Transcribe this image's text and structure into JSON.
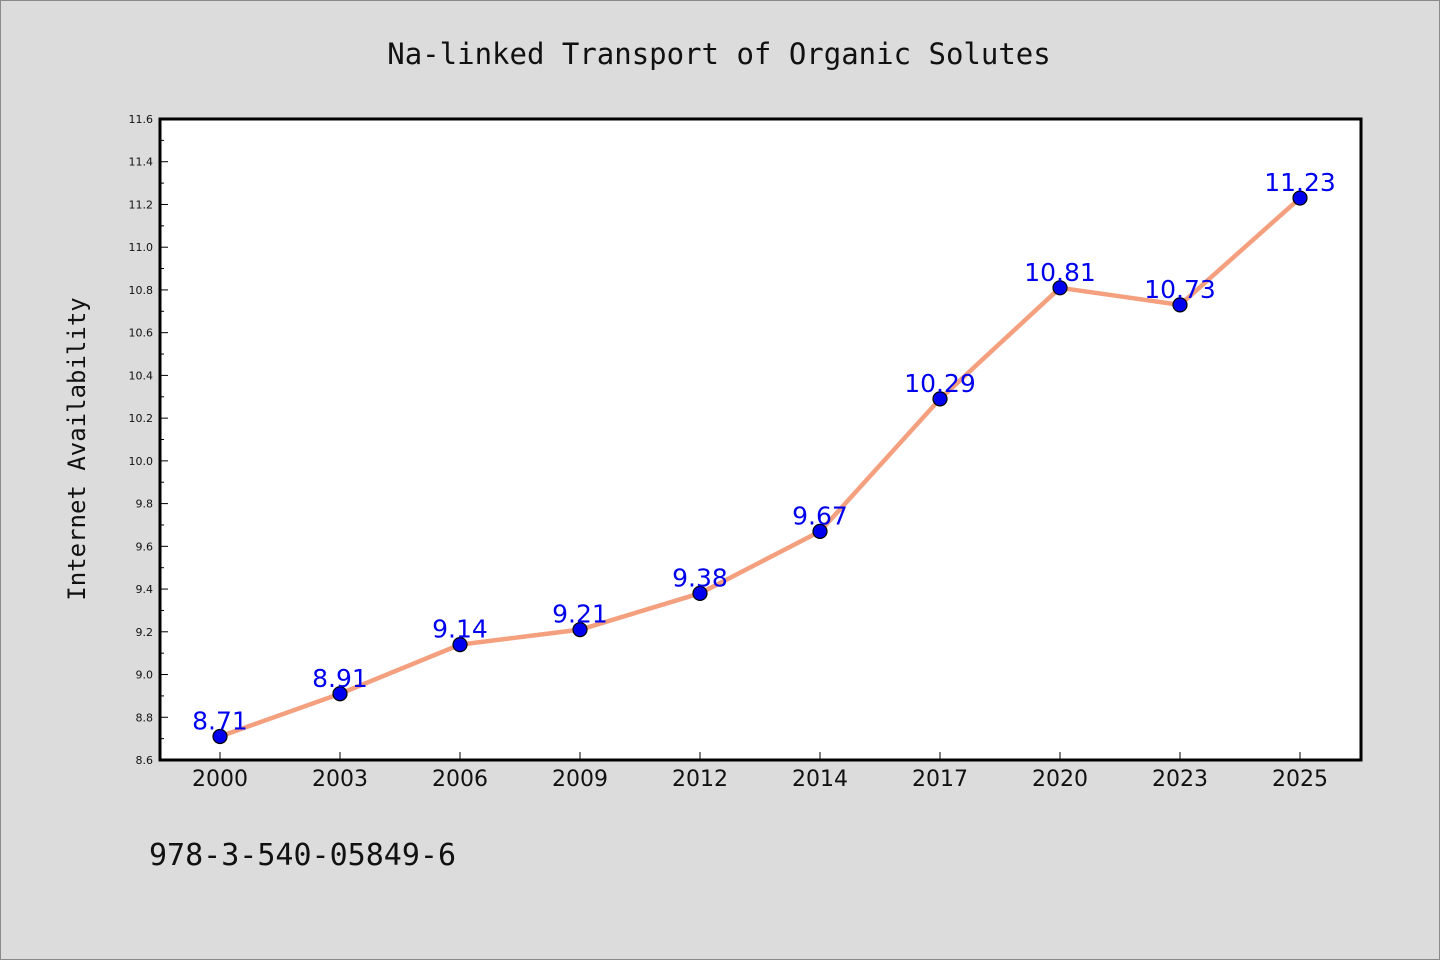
{
  "chart_data": {
    "type": "line",
    "title": "Na-linked Transport of Organic Solutes",
    "xlabel": "",
    "ylabel": "Internet Availability",
    "categories": [
      "2000",
      "2003",
      "2006",
      "2009",
      "2012",
      "2014",
      "2017",
      "2020",
      "2023",
      "2025"
    ],
    "series": [
      {
        "values": [
          8.71,
          8.91,
          9.14,
          9.21,
          9.38,
          9.67,
          10.29,
          10.81,
          10.73,
          11.23
        ]
      }
    ],
    "data_labels": [
      "8.71",
      "8.91",
      "9.14",
      "9.21",
      "9.38",
      "9.67",
      "10.29",
      "10.81",
      "10.73",
      "11.23"
    ],
    "ylim": [
      8.6,
      11.6
    ],
    "yticks": [
      "8.6",
      "8.8",
      "9.0",
      "9.2",
      "9.4",
      "9.6",
      "9.8",
      "10.0",
      "10.2",
      "10.4",
      "10.6",
      "10.8",
      "11.0",
      "11.2",
      "11.4",
      "11.6"
    ],
    "grid": false,
    "legend": "none",
    "colors": {
      "line": "#f4a07f",
      "marker": "#0000ee",
      "label": "#0000ee",
      "background": "#dcdcdc",
      "plot_background": "#ffffff"
    }
  },
  "footnote": "978-3-540-05849-6"
}
